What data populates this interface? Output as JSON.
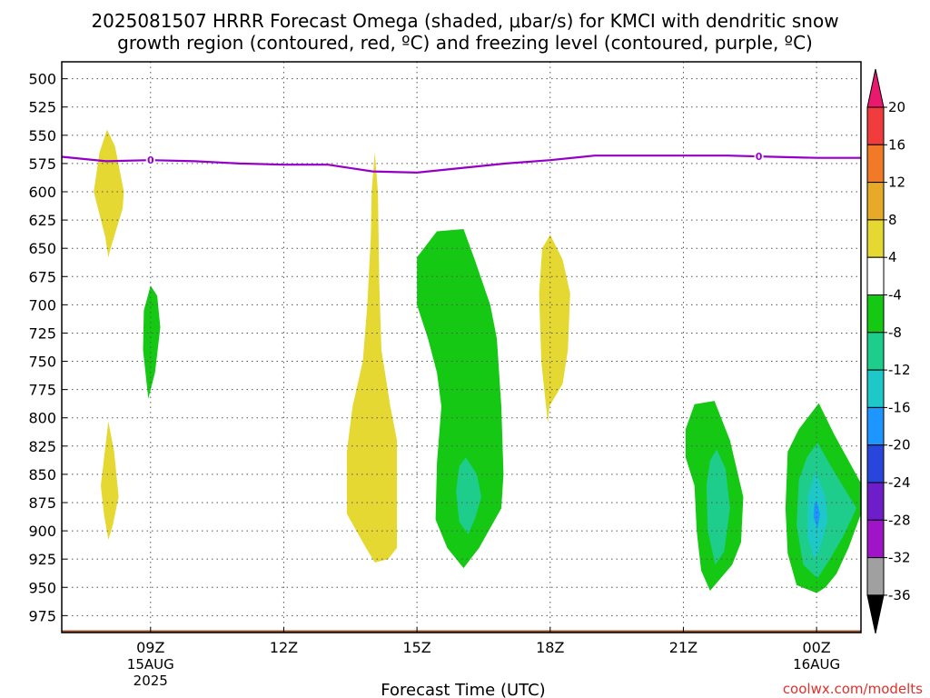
{
  "title": {
    "line1": "2025081507 HRRR Forecast Omega (shaded, μbar/s) for KMCI with dendritic snow",
    "line2": "growth region (contoured, red, ºC) and freezing level (contoured, purple, ºC)"
  },
  "credit": "coolwx.com/modelts",
  "colors": {
    "freezing_level": "#9400c8",
    "ground": "#a0522d",
    "grid": "#555555"
  },
  "chart_data": {
    "type": "time-height-contour",
    "xlabel": "Forecast Time (UTC)",
    "ylabel": "",
    "x_range_hours": [
      7,
      25
    ],
    "y_range_hpa": [
      485,
      990
    ],
    "y_inverted": true,
    "grid": true,
    "y_ticks": [
      500,
      525,
      550,
      575,
      600,
      625,
      650,
      675,
      700,
      725,
      750,
      775,
      800,
      825,
      850,
      875,
      900,
      925,
      950,
      975
    ],
    "x_ticks": [
      {
        "hour": 9,
        "label": "09Z",
        "sub1": "15AUG",
        "sub2": "2025"
      },
      {
        "hour": 12,
        "label": "12Z",
        "sub1": "",
        "sub2": ""
      },
      {
        "hour": 15,
        "label": "15Z",
        "sub1": "",
        "sub2": ""
      },
      {
        "hour": 18,
        "label": "18Z",
        "sub1": "",
        "sub2": ""
      },
      {
        "hour": 21,
        "label": "21Z",
        "sub1": "",
        "sub2": ""
      },
      {
        "hour": 24,
        "label": "00Z",
        "sub1": "16AUG",
        "sub2": ""
      }
    ],
    "ground_level_hpa": 988,
    "freezing_level": {
      "label": "0",
      "label_hours": [
        9,
        22.7
      ],
      "hours": [
        7,
        8,
        9,
        10,
        11,
        12,
        13,
        14,
        15,
        16,
        17,
        18,
        19,
        20,
        21,
        22,
        23,
        24,
        25
      ],
      "hpa": [
        569,
        573,
        572,
        573,
        575,
        576,
        576,
        582,
        583,
        579,
        575,
        572,
        568,
        568,
        568,
        568,
        569,
        570,
        570
      ]
    },
    "colorbar": {
      "labels": [
        "20",
        "16",
        "12",
        "8",
        "4",
        "-4",
        "-8",
        "-12",
        "-16",
        "-20",
        "-24",
        "-28",
        "-32",
        "-36"
      ],
      "bins": [
        {
          "range": ">20",
          "color": "#e8196e"
        },
        {
          "range": "16 to 20",
          "color": "#f03c3c"
        },
        {
          "range": "12 to 16",
          "color": "#f07a28"
        },
        {
          "range": "8 to 12",
          "color": "#e6aa28"
        },
        {
          "range": "4 to 8",
          "color": "#e6d832"
        },
        {
          "range": "-4 to 4",
          "color": "#ffffff"
        },
        {
          "range": "-8 to -4",
          "color": "#14c814"
        },
        {
          "range": "-12 to -8",
          "color": "#1ecd8c"
        },
        {
          "range": "-16 to -12",
          "color": "#1ec8c8"
        },
        {
          "range": "-20 to -16",
          "color": "#1e96ff"
        },
        {
          "range": "-24 to -20",
          "color": "#2846dc"
        },
        {
          "range": "-28 to -24",
          "color": "#6e1ec8"
        },
        {
          "range": "-32 to -28",
          "color": "#a014c8"
        },
        {
          "range": "-36 to -32",
          "color": "#a0a0a0"
        },
        {
          "range": "<-36",
          "color": "#000000"
        }
      ]
    },
    "regions": [
      {
        "name": "positive-omega-0730-0830-upper",
        "value": "4 to 8",
        "color": "#e6d832",
        "points": [
          [
            8.02,
            545
          ],
          [
            8.2,
            560
          ],
          [
            8.4,
            600
          ],
          [
            8.37,
            615
          ],
          [
            8.1,
            650
          ],
          [
            8.05,
            658
          ],
          [
            7.98,
            640
          ],
          [
            7.72,
            600
          ],
          [
            7.85,
            565
          ]
        ]
      },
      {
        "name": "negative-omega-0900-0915-mid",
        "value": "-8 to -4",
        "color": "#14c814",
        "points": [
          [
            9.0,
            683
          ],
          [
            9.15,
            692
          ],
          [
            9.22,
            720
          ],
          [
            9.1,
            760
          ],
          [
            8.95,
            783
          ],
          [
            8.83,
            740
          ],
          [
            8.85,
            705
          ]
        ]
      },
      {
        "name": "positive-omega-0745-0830-low",
        "value": "4 to 8",
        "color": "#e6d832",
        "points": [
          [
            8.05,
            803
          ],
          [
            8.18,
            830
          ],
          [
            8.28,
            870
          ],
          [
            8.15,
            895
          ],
          [
            8.05,
            908
          ],
          [
            7.95,
            885
          ],
          [
            7.88,
            860
          ]
        ]
      },
      {
        "name": "positive-omega-1330-1440-vertical",
        "value": "4 to 8",
        "color": "#e6d832",
        "points": [
          [
            14.05,
            565
          ],
          [
            14.12,
            600
          ],
          [
            14.15,
            680
          ],
          [
            14.2,
            740
          ],
          [
            14.4,
            790
          ],
          [
            14.55,
            820
          ],
          [
            14.55,
            880
          ],
          [
            14.55,
            915
          ],
          [
            14.35,
            925
          ],
          [
            14.05,
            928
          ],
          [
            13.85,
            915
          ],
          [
            13.42,
            885
          ],
          [
            13.42,
            830
          ],
          [
            13.55,
            790
          ],
          [
            13.78,
            750
          ],
          [
            13.88,
            700
          ],
          [
            13.96,
            640
          ],
          [
            13.98,
            600
          ]
        ]
      },
      {
        "name": "negative-omega-1500-1700",
        "value": "-8 to -4",
        "color": "#14c814",
        "points": [
          [
            15.0,
            658
          ],
          [
            15.45,
            635
          ],
          [
            16.05,
            633
          ],
          [
            16.3,
            660
          ],
          [
            16.65,
            700
          ],
          [
            16.8,
            730
          ],
          [
            16.9,
            790
          ],
          [
            16.95,
            850
          ],
          [
            16.9,
            880
          ],
          [
            16.4,
            915
          ],
          [
            16.05,
            933
          ],
          [
            15.68,
            915
          ],
          [
            15.42,
            890
          ],
          [
            15.45,
            840
          ],
          [
            15.55,
            790
          ],
          [
            15.45,
            760
          ],
          [
            15.25,
            730
          ],
          [
            15.0,
            700
          ]
        ]
      },
      {
        "name": "enhanced-omega-1600",
        "value": "-12 to -8",
        "color": "#1ecd8c",
        "points": [
          [
            16.1,
            835
          ],
          [
            16.35,
            850
          ],
          [
            16.45,
            870
          ],
          [
            16.3,
            890
          ],
          [
            16.15,
            903
          ],
          [
            15.95,
            892
          ],
          [
            15.88,
            865
          ],
          [
            15.95,
            843
          ]
        ]
      },
      {
        "name": "positive-omega-1745-1830",
        "value": "4 to 8",
        "color": "#e6d832",
        "points": [
          [
            18.0,
            638
          ],
          [
            18.28,
            660
          ],
          [
            18.45,
            690
          ],
          [
            18.4,
            740
          ],
          [
            18.28,
            770
          ],
          [
            17.98,
            790
          ],
          [
            17.95,
            805
          ],
          [
            17.88,
            780
          ],
          [
            17.8,
            750
          ],
          [
            17.75,
            690
          ],
          [
            17.82,
            650
          ]
        ]
      },
      {
        "name": "negative-omega-2110-2245",
        "value": "-8 to -4",
        "color": "#14c814",
        "points": [
          [
            21.25,
            788
          ],
          [
            21.7,
            785
          ],
          [
            22.05,
            820
          ],
          [
            22.35,
            870
          ],
          [
            22.3,
            910
          ],
          [
            22.1,
            930
          ],
          [
            21.6,
            953
          ],
          [
            21.4,
            935
          ],
          [
            21.3,
            900
          ],
          [
            21.25,
            860
          ],
          [
            21.05,
            835
          ],
          [
            21.05,
            810
          ]
        ]
      },
      {
        "name": "enhanced-omega-2150-2225",
        "value": "-12 to -8",
        "color": "#1ecd8c",
        "points": [
          [
            21.75,
            828
          ],
          [
            21.95,
            845
          ],
          [
            22.05,
            880
          ],
          [
            21.92,
            918
          ],
          [
            21.72,
            930
          ],
          [
            21.55,
            900
          ],
          [
            21.52,
            860
          ],
          [
            21.6,
            838
          ]
        ]
      },
      {
        "name": "negative-omega-2300-0100",
        "value": "-8 to -4",
        "color": "#14c814",
        "points": [
          [
            24.05,
            787
          ],
          [
            24.4,
            815
          ],
          [
            24.75,
            840
          ],
          [
            25.0,
            858
          ],
          [
            25.0,
            885
          ],
          [
            24.72,
            915
          ],
          [
            24.45,
            938
          ],
          [
            24.2,
            950
          ],
          [
            24.0,
            955
          ],
          [
            23.55,
            948
          ],
          [
            23.35,
            920
          ],
          [
            23.3,
            880
          ],
          [
            23.35,
            830
          ],
          [
            23.6,
            810
          ]
        ]
      },
      {
        "name": "enhanced-omega-2320-0050",
        "value": "-12 to -8",
        "color": "#1ecd8c",
        "points": [
          [
            24.02,
            822
          ],
          [
            24.4,
            848
          ],
          [
            24.9,
            880
          ],
          [
            24.6,
            905
          ],
          [
            24.3,
            925
          ],
          [
            24.02,
            942
          ],
          [
            23.7,
            930
          ],
          [
            23.55,
            895
          ],
          [
            23.6,
            855
          ],
          [
            23.78,
            835
          ]
        ]
      },
      {
        "name": "strong-omega-2345-0020",
        "value": "-16 to -12",
        "color": "#1ec8c8",
        "points": [
          [
            23.98,
            848
          ],
          [
            24.2,
            870
          ],
          [
            24.25,
            890
          ],
          [
            24.08,
            915
          ],
          [
            23.95,
            925
          ],
          [
            23.8,
            905
          ],
          [
            23.8,
            870
          ]
        ]
      },
      {
        "name": "core-omega-0000",
        "value": "-20 to -16",
        "color": "#1e96ff",
        "points": [
          [
            24.0,
            873
          ],
          [
            24.08,
            885
          ],
          [
            24.02,
            898
          ],
          [
            23.93,
            888
          ],
          [
            23.95,
            876
          ]
        ]
      }
    ]
  }
}
